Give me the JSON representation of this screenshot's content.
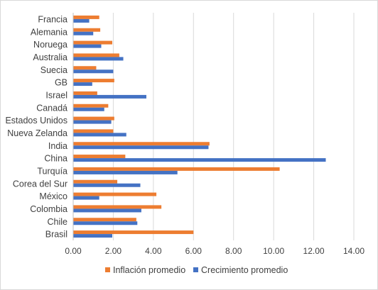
{
  "chart_data": {
    "type": "bar",
    "orientation": "horizontal",
    "title": "",
    "xlabel": "",
    "ylabel": "",
    "xlim": [
      0,
      14
    ],
    "xticks": [
      "0.00",
      "2.00",
      "4.00",
      "6.00",
      "8.00",
      "10.00",
      "12.00",
      "14.00"
    ],
    "grid": "vertical",
    "legend_position": "bottom",
    "categories": [
      "Francia",
      "Alemania",
      "Noruega",
      "Australia",
      "Suecia",
      "GB",
      "Israel",
      "Canadá",
      "Estados Unidos",
      "Nueva Zelanda",
      "India",
      "China",
      "Turquía",
      "Corea del Sur",
      "México",
      "Colombia",
      "Chile",
      "Brasil"
    ],
    "series": [
      {
        "name": "Inflación promedio",
        "color": "#ed7d31",
        "values": [
          1.3,
          1.35,
          1.95,
          2.3,
          1.15,
          2.05,
          1.2,
          1.75,
          2.05,
          2.0,
          6.8,
          2.6,
          10.3,
          2.2,
          4.15,
          4.4,
          3.15,
          6.0
        ]
      },
      {
        "name": "Crecimiento promedio",
        "color": "#4472c4",
        "values": [
          0.8,
          1.0,
          1.4,
          2.5,
          2.0,
          0.95,
          3.65,
          1.55,
          1.9,
          2.65,
          6.75,
          12.6,
          5.2,
          3.35,
          1.3,
          3.4,
          3.2,
          1.95
        ]
      }
    ]
  }
}
